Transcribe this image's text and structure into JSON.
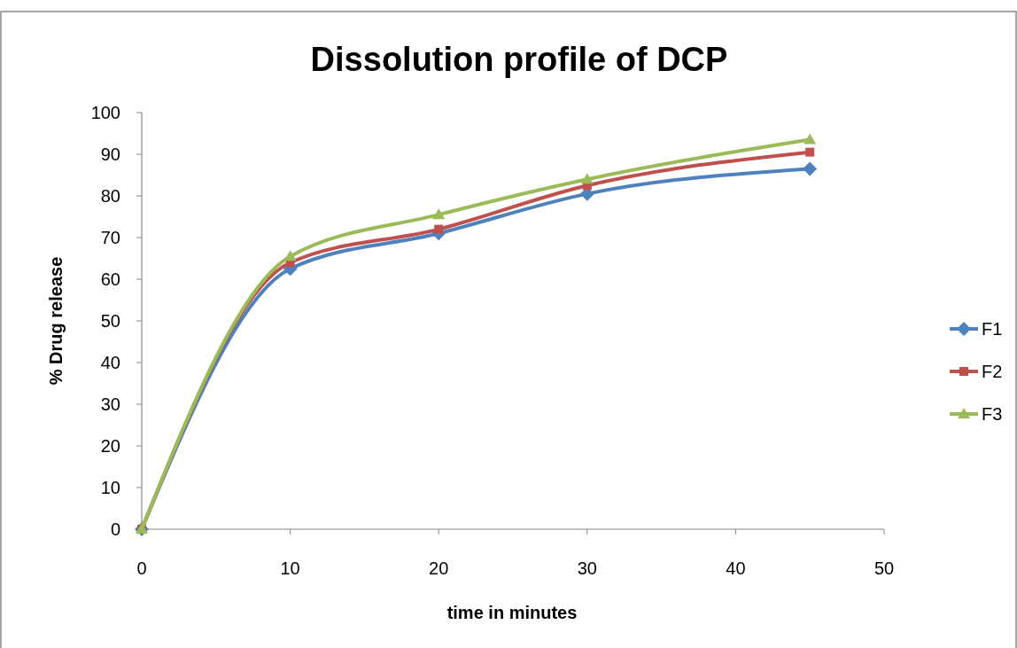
{
  "chart_data": {
    "type": "line",
    "title": "Dissolution profile of DCP",
    "xlabel": "time in minutes",
    "ylabel": "% Drug release",
    "x": [
      0,
      10,
      20,
      30,
      45
    ],
    "series": [
      {
        "name": "F1",
        "color": "#4f81bd",
        "marker": "diamond",
        "values": [
          0,
          62.5,
          71,
          80.5,
          86.5
        ]
      },
      {
        "name": "F2",
        "color": "#c0504d",
        "marker": "square",
        "values": [
          0,
          64,
          72,
          82.5,
          90.5
        ]
      },
      {
        "name": "F3",
        "color": "#9bbb59",
        "marker": "triangle",
        "values": [
          0,
          65.5,
          75.5,
          84,
          93.5
        ]
      }
    ],
    "xlim": [
      0,
      50
    ],
    "xticks": [
      0,
      10,
      20,
      30,
      40,
      50
    ],
    "ylim": [
      0,
      100
    ],
    "yticks": [
      0,
      10,
      20,
      30,
      40,
      50,
      60,
      70,
      80,
      90,
      100
    ],
    "grid": false,
    "legend": "right",
    "line_style": "solid"
  }
}
